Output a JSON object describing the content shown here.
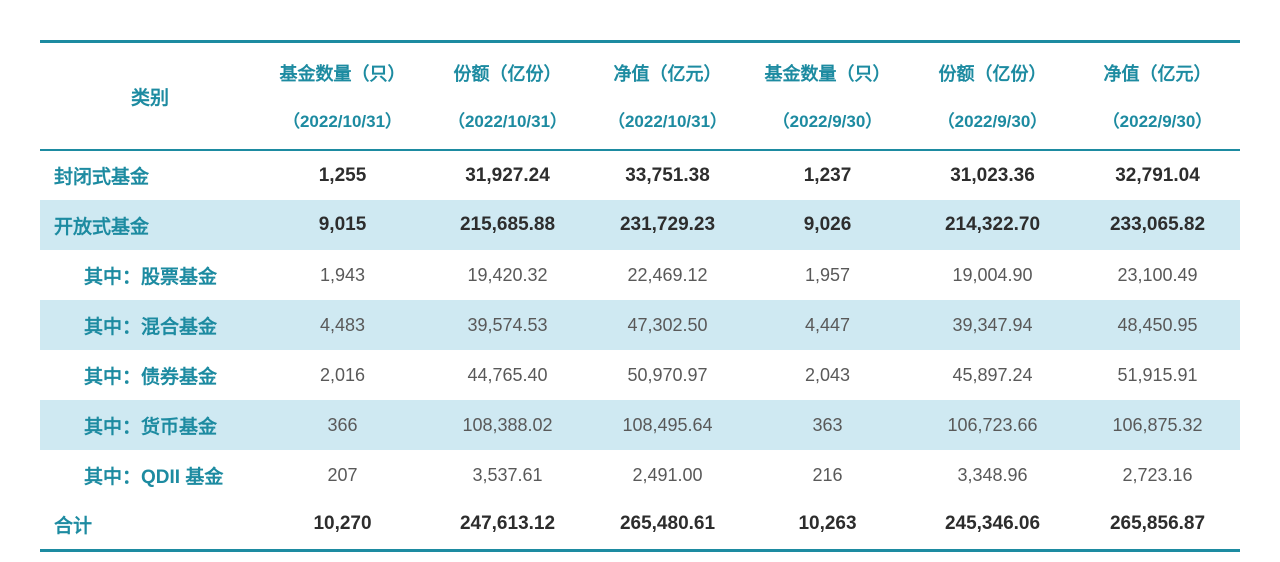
{
  "accent_color": "#1d8ba1",
  "stripe_color": "#cfe9f2",
  "table": {
    "header": {
      "category": "类别",
      "cols": [
        {
          "unit": "基金数量（只）",
          "date": "（2022/10/31）"
        },
        {
          "unit": "份额（亿份）",
          "date": "（2022/10/31）"
        },
        {
          "unit": "净值（亿元）",
          "date": "（2022/10/31）"
        },
        {
          "unit": "基金数量（只）",
          "date": "（2022/9/30）"
        },
        {
          "unit": "份额（亿份）",
          "date": "（2022/9/30）"
        },
        {
          "unit": "净值（亿元）",
          "date": "（2022/9/30）"
        }
      ]
    },
    "rows": [
      {
        "label": "封闭式基金",
        "values": [
          "1,255",
          "31,927.24",
          "33,751.38",
          "1,237",
          "31,023.36",
          "32,791.04"
        ]
      },
      {
        "label": "开放式基金",
        "values": [
          "9,015",
          "215,685.88",
          "231,729.23",
          "9,026",
          "214,322.70",
          "233,065.82"
        ]
      },
      {
        "label": "其中：股票基金",
        "values": [
          "1,943",
          "19,420.32",
          "22,469.12",
          "1,957",
          "19,004.90",
          "23,100.49"
        ]
      },
      {
        "label": "其中：混合基金",
        "values": [
          "4,483",
          "39,574.53",
          "47,302.50",
          "4,447",
          "39,347.94",
          "48,450.95"
        ]
      },
      {
        "label": "其中：债券基金",
        "values": [
          "2,016",
          "44,765.40",
          "50,970.97",
          "2,043",
          "45,897.24",
          "51,915.91"
        ]
      },
      {
        "label": "其中：货币基金",
        "values": [
          "366",
          "108,388.02",
          "108,495.64",
          "363",
          "106,723.66",
          "106,875.32"
        ]
      },
      {
        "label": "其中：QDII 基金",
        "values": [
          "207",
          "3,537.61",
          "2,491.00",
          "216",
          "3,348.96",
          "2,723.16"
        ]
      },
      {
        "label": "合计",
        "values": [
          "10,270",
          "247,613.12",
          "265,480.61",
          "10,263",
          "245,346.06",
          "265,856.87"
        ]
      }
    ]
  },
  "chart_data": {
    "type": "table",
    "columns": [
      "类别",
      "基金数量（只）（2022/10/31）",
      "份额（亿份）（2022/10/31）",
      "净值（亿元）（2022/10/31）",
      "基金数量（只）（2022/9/30）",
      "份额（亿份）（2022/9/30）",
      "净值（亿元）（2022/9/30）"
    ],
    "rows": [
      [
        "封闭式基金",
        1255,
        31927.24,
        33751.38,
        1237,
        31023.36,
        32791.04
      ],
      [
        "开放式基金",
        9015,
        215685.88,
        231729.23,
        9026,
        214322.7,
        233065.82
      ],
      [
        "其中：股票基金",
        1943,
        19420.32,
        22469.12,
        1957,
        19004.9,
        23100.49
      ],
      [
        "其中：混合基金",
        4483,
        39574.53,
        47302.5,
        4447,
        39347.94,
        48450.95
      ],
      [
        "其中：债券基金",
        2016,
        44765.4,
        50970.97,
        2043,
        45897.24,
        51915.91
      ],
      [
        "其中：货币基金",
        366,
        108388.02,
        108495.64,
        363,
        106723.66,
        106875.32
      ],
      [
        "其中：QDII 基金",
        207,
        3537.61,
        2491.0,
        216,
        3348.96,
        2723.16
      ],
      [
        "合计",
        10270,
        247613.12,
        265480.61,
        10263,
        245346.06,
        265856.87
      ]
    ]
  }
}
